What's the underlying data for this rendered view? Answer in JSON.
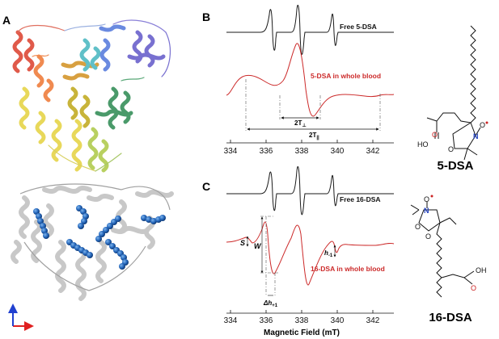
{
  "panels": {
    "A": "A",
    "B": "B",
    "C": "C"
  },
  "spectra": {
    "axis_label": "Magnetic Field (mT)",
    "ticks": [
      "334",
      "336",
      "338",
      "340",
      "342"
    ],
    "b_free_label": "Free 5-DSA",
    "b_blood_label": "5-DSA in whole blood",
    "b_2t_perp": "2T",
    "b_2t_perp_sub": "⊥",
    "b_2t_par": "2T",
    "b_2t_par_sub": "||",
    "c_free_label": "Free 16-DSA",
    "c_blood_label": "16-DSA in whole blood",
    "c_s": "S",
    "c_w": "W",
    "c_h": "h",
    "c_h_sub": "-1",
    "c_dh": "Δh",
    "c_dh_sub": "+1"
  },
  "molecules": {
    "top_name": "5-DSA",
    "bottom_name": "16-DSA",
    "atom_o": "O",
    "atom_n": "N",
    "atom_ho": "HO",
    "atom_oh": "OH"
  },
  "colors": {
    "red_trace": "#cc2a2a",
    "black_trace": "#1a1a1a",
    "nitrogen": "#1f3fbf",
    "radical": "#cc2222",
    "axis_x_arrow": "#e02020",
    "axis_y_arrow": "#2040d0",
    "sphere_blue": "#1f5fae"
  }
}
